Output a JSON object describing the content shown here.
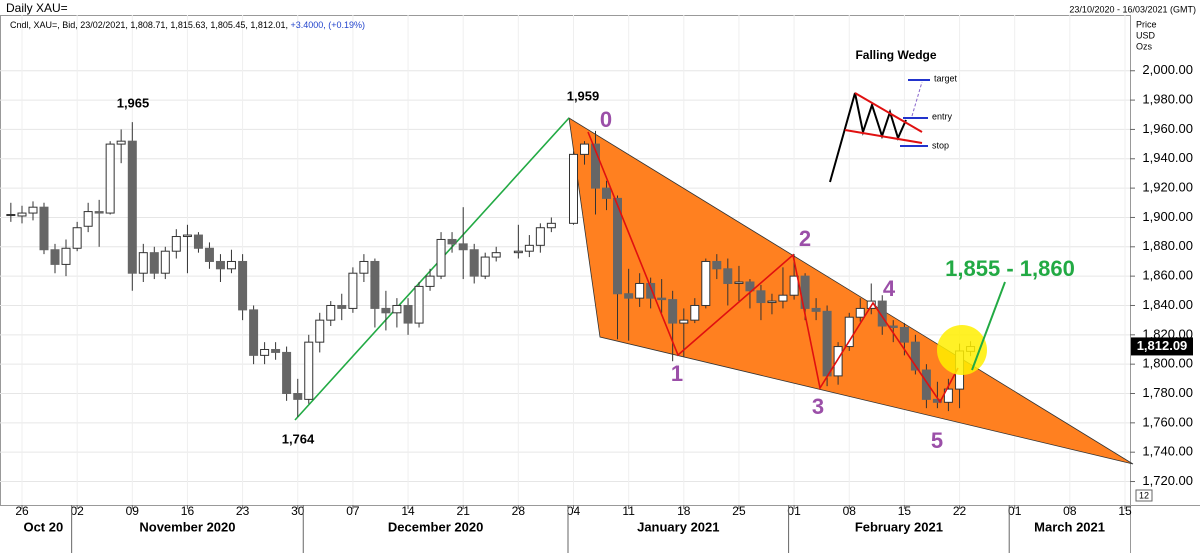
{
  "chart_data": {
    "type": "candlestick",
    "title": "Daily XAU=",
    "subtitle": "Cndl, XAU=, Bid, 23/02/2021, 1,808.71, 1,815.63, 1,805.45, 1,812.01,",
    "change": "+3.4000, (+0.19%)",
    "date_range": "23/10/2020 - 16/03/2021 (GMT)",
    "y_axis_label": [
      "Price",
      "USD",
      "Ozs"
    ],
    "zoom_label": "12",
    "x": [
      "2020-10-23",
      "2020-10-26",
      "2020-10-27",
      "2020-10-28",
      "2020-10-29",
      "2020-10-30",
      "2020-11-02",
      "2020-11-03",
      "2020-11-04",
      "2020-11-05",
      "2020-11-06",
      "2020-11-09",
      "2020-11-10",
      "2020-11-11",
      "2020-11-12",
      "2020-11-13",
      "2020-11-16",
      "2020-11-17",
      "2020-11-18",
      "2020-11-19",
      "2020-11-20",
      "2020-11-23",
      "2020-11-24",
      "2020-11-25",
      "2020-11-26",
      "2020-11-27",
      "2020-11-30",
      "2020-12-01",
      "2020-12-02",
      "2020-12-03",
      "2020-12-04",
      "2020-12-07",
      "2020-12-08",
      "2020-12-09",
      "2020-12-10",
      "2020-12-11",
      "2020-12-14",
      "2020-12-15",
      "2020-12-16",
      "2020-12-17",
      "2020-12-18",
      "2020-12-21",
      "2020-12-22",
      "2020-12-23",
      "2020-12-24",
      "2020-12-28",
      "2020-12-29",
      "2020-12-30",
      "2020-12-31",
      "2021-01-04",
      "2021-01-05",
      "2021-01-06",
      "2021-01-07",
      "2021-01-08",
      "2021-01-11",
      "2021-01-12",
      "2021-01-13",
      "2021-01-14",
      "2021-01-15",
      "2021-01-18",
      "2021-01-19",
      "2021-01-20",
      "2021-01-21",
      "2021-01-22",
      "2021-01-25",
      "2021-01-26",
      "2021-01-27",
      "2021-01-28",
      "2021-01-29",
      "2021-02-01",
      "2021-02-02",
      "2021-02-03",
      "2021-02-04",
      "2021-02-05",
      "2021-02-08",
      "2021-02-09",
      "2021-02-10",
      "2021-02-11",
      "2021-02-12",
      "2021-02-15",
      "2021-02-16",
      "2021-02-17",
      "2021-02-18",
      "2021-02-19",
      "2021-02-22",
      "2021-02-23"
    ],
    "open": [
      1902,
      1901,
      1903,
      1907,
      1878,
      1868,
      1879,
      1894,
      1904,
      1903,
      1950,
      1952,
      1862,
      1876,
      1862,
      1877,
      1887,
      1888,
      1879,
      1870,
      1865,
      1870,
      1837,
      1806,
      1810,
      1808,
      1780,
      1776,
      1815,
      1830,
      1840,
      1838,
      1862,
      1870,
      1838,
      1835,
      1840,
      1828,
      1853,
      1860,
      1885,
      1882,
      1878,
      1860,
      1873,
      1876,
      1877,
      1881,
      1893,
      1896,
      1943,
      1950,
      1920,
      1913,
      1848,
      1845,
      1855,
      1845,
      1844,
      1828,
      1830,
      1840,
      1870,
      1865,
      1855,
      1856,
      1850,
      1842,
      1843,
      1847,
      1860,
      1838,
      1836,
      1792,
      1812,
      1832,
      1838,
      1843,
      1826,
      1825,
      1815,
      1796,
      1776,
      1774,
      1783,
      1808.71
    ],
    "high": [
      1910,
      1908,
      1911,
      1910,
      1882,
      1885,
      1897,
      1910,
      1912,
      1952,
      1960,
      1965,
      1882,
      1880,
      1880,
      1892,
      1895,
      1890,
      1883,
      1875,
      1878,
      1875,
      1840,
      1815,
      1815,
      1812,
      1790,
      1820,
      1835,
      1843,
      1848,
      1866,
      1875,
      1872,
      1850,
      1845,
      1845,
      1856,
      1865,
      1890,
      1890,
      1907,
      1882,
      1876,
      1880,
      1895,
      1888,
      1896,
      1900,
      1945,
      1952,
      1959,
      1925,
      1915,
      1865,
      1862,
      1859,
      1858,
      1850,
      1838,
      1845,
      1872,
      1875,
      1872,
      1867,
      1858,
      1854,
      1848,
      1866,
      1875,
      1862,
      1845,
      1840,
      1815,
      1835,
      1845,
      1855,
      1847,
      1830,
      1828,
      1820,
      1800,
      1788,
      1790,
      1814,
      1815.63
    ],
    "low": [
      1897,
      1896,
      1898,
      1875,
      1862,
      1860,
      1877,
      1890,
      1880,
      1902,
      1937,
      1850,
      1856,
      1858,
      1858,
      1872,
      1862,
      1876,
      1865,
      1856,
      1862,
      1830,
      1800,
      1800,
      1803,
      1775,
      1764,
      1773,
      1808,
      1826,
      1830,
      1835,
      1856,
      1825,
      1823,
      1825,
      1820,
      1825,
      1850,
      1858,
      1876,
      1858,
      1855,
      1858,
      1870,
      1872,
      1873,
      1876,
      1890,
      1895,
      1936,
      1902,
      1905,
      1817,
      1816,
      1839,
      1838,
      1835,
      1802,
      1805,
      1828,
      1838,
      1858,
      1840,
      1843,
      1838,
      1830,
      1834,
      1838,
      1844,
      1830,
      1830,
      1785,
      1786,
      1809,
      1829,
      1834,
      1820,
      1815,
      1806,
      1793,
      1770,
      1770,
      1768,
      1770,
      1805.45
    ],
    "close": [
      1902,
      1903,
      1907,
      1878,
      1868,
      1879,
      1893,
      1904,
      1903,
      1950,
      1952,
      1862,
      1876,
      1862,
      1877,
      1887,
      1888,
      1879,
      1870,
      1865,
      1870,
      1837,
      1806,
      1810,
      1808,
      1780,
      1776,
      1815,
      1830,
      1840,
      1838,
      1862,
      1870,
      1838,
      1835,
      1840,
      1828,
      1853,
      1860,
      1885,
      1882,
      1878,
      1860,
      1873,
      1876,
      1877,
      1881,
      1893,
      1896,
      1943,
      1950,
      1920,
      1913,
      1848,
      1845,
      1855,
      1845,
      1844,
      1828,
      1830,
      1840,
      1870,
      1865,
      1855,
      1856,
      1850,
      1842,
      1843,
      1847,
      1860,
      1838,
      1836,
      1792,
      1812,
      1832,
      1838,
      1843,
      1826,
      1825,
      1815,
      1796,
      1776,
      1774,
      1783,
      1809,
      1812.01
    ],
    "xlim": [
      "2020-10-23",
      "2021-03-16"
    ],
    "xticks": [
      {
        "value": "2020-10-26",
        "label": "26"
      },
      {
        "value": "2020-11-02",
        "label": "02"
      },
      {
        "value": "2020-11-09",
        "label": "09"
      },
      {
        "value": "2020-11-16",
        "label": "16"
      },
      {
        "value": "2020-11-23",
        "label": "23"
      },
      {
        "value": "2020-11-30",
        "label": "30"
      },
      {
        "value": "2020-12-07",
        "label": "07"
      },
      {
        "value": "2020-12-14",
        "label": "14"
      },
      {
        "value": "2020-12-21",
        "label": "21"
      },
      {
        "value": "2020-12-28",
        "label": "28"
      },
      {
        "value": "2021-01-04",
        "label": "04"
      },
      {
        "value": "2021-01-11",
        "label": "11"
      },
      {
        "value": "2021-01-18",
        "label": "18"
      },
      {
        "value": "2021-01-25",
        "label": "25"
      },
      {
        "value": "2021-02-01",
        "label": "01"
      },
      {
        "value": "2021-02-08",
        "label": "08"
      },
      {
        "value": "2021-02-15",
        "label": "15"
      },
      {
        "value": "2021-02-22",
        "label": "22"
      },
      {
        "value": "2021-03-01",
        "label": "01"
      },
      {
        "value": "2021-03-08",
        "label": "08"
      },
      {
        "value": "2021-03-15",
        "label": "15"
      }
    ],
    "month_labels": [
      {
        "value": "2020-10-23",
        "label": "Oct 20"
      },
      {
        "value": "2020-11-02",
        "label": "November 2020"
      },
      {
        "value": "2020-12-01",
        "label": "December 2020"
      },
      {
        "value": "2021-01-04",
        "label": "January 2021"
      },
      {
        "value": "2021-02-01",
        "label": "February 2021"
      },
      {
        "value": "2021-03-01",
        "label": "March 2021"
      }
    ],
    "ylim": [
      1704,
      2038
    ],
    "yticks": [
      {
        "value": 1720,
        "label": "1,720.00"
      },
      {
        "value": 1740,
        "label": "1,740.00"
      },
      {
        "value": 1760,
        "label": "1,760.00"
      },
      {
        "value": 1780,
        "label": "1,780.00"
      },
      {
        "value": 1800,
        "label": "1,800.00"
      },
      {
        "value": 1820,
        "label": "1,820.00"
      },
      {
        "value": 1840,
        "label": "1,840.00"
      },
      {
        "value": 1860,
        "label": "1,860.00"
      },
      {
        "value": 1880,
        "label": "1,880.00"
      },
      {
        "value": 1900,
        "label": "1,900.00"
      },
      {
        "value": 1920,
        "label": "1,920.00"
      },
      {
        "value": 1940,
        "label": "1,940.00"
      },
      {
        "value": 1960,
        "label": "1,960.00"
      },
      {
        "value": 1980,
        "label": "1,980.00"
      },
      {
        "value": 2000,
        "label": "2,000.00"
      }
    ],
    "last_price": {
      "value": 1812.09,
      "label": "1,812.09"
    },
    "up_color": "#ffffff",
    "down_color": "#666666",
    "annotations": [
      "1,965",
      "1,959",
      "1,764",
      "0",
      "1",
      "2",
      "3",
      "4",
      "5",
      "1,855 - 1,860"
    ],
    "inset": {
      "title": "Falling Wedge",
      "labels": [
        "target",
        "entry",
        "stop"
      ]
    }
  }
}
